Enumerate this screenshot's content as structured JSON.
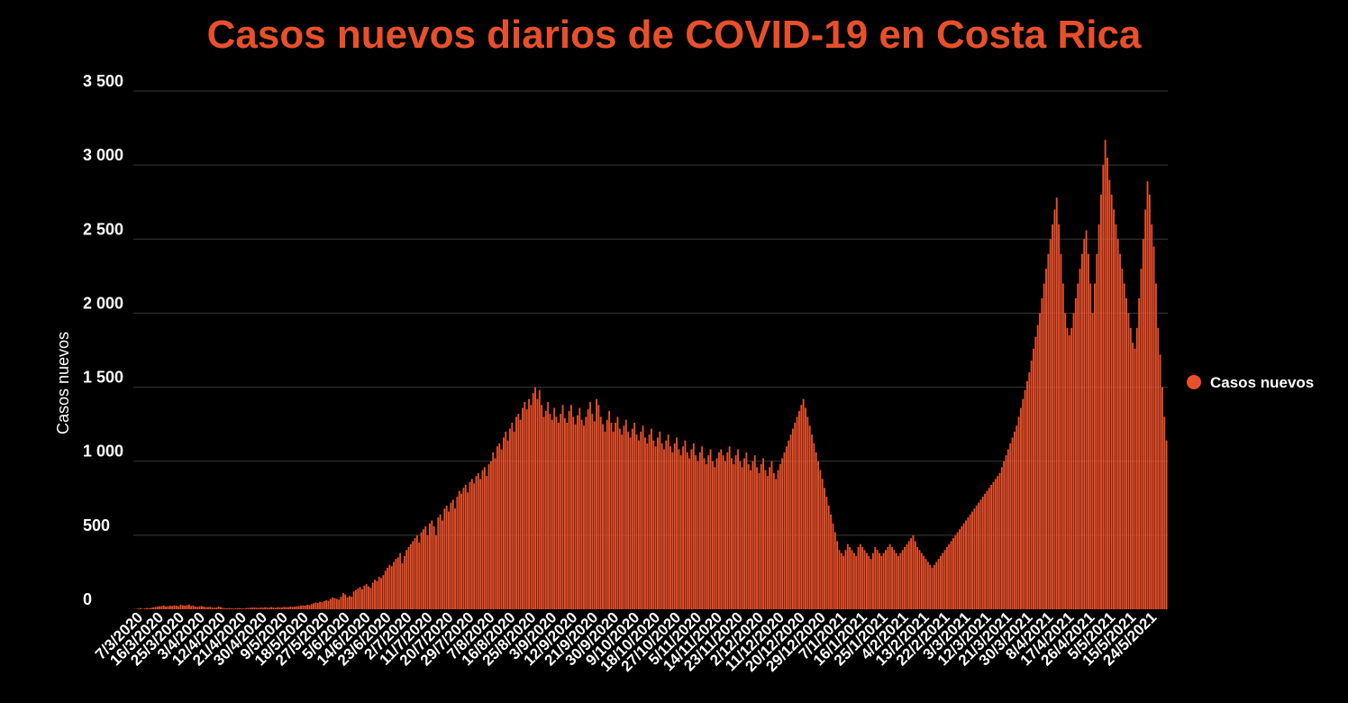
{
  "chart_data": {
    "type": "bar",
    "title": "Casos nuevos diarios de COVID-19 en Costa Rica",
    "ylabel": "Casos nuevos",
    "xlabel": "",
    "ylim": [
      0,
      3500
    ],
    "yticks": [
      0,
      500,
      1000,
      1500,
      2000,
      2500,
      3000,
      3500
    ],
    "ytick_labels": [
      "0",
      "500",
      "1 000",
      "1 500",
      "2 000",
      "2 500",
      "3 000",
      "3 500"
    ],
    "xtick_labels": [
      "7/3/2020",
      "16/3/2020",
      "25/3/2020",
      "3/4/2020",
      "12/4/2020",
      "21/4/2020",
      "30/4/2020",
      "9/5/2020",
      "18/5/2020",
      "27/5/2020",
      "5/6/2020",
      "14/6/2020",
      "23/6/2020",
      "2/7/2020",
      "11/7/2020",
      "20/7/2020",
      "29/7/2020",
      "7/8/2020",
      "16/8/2020",
      "25/8/2020",
      "3/9/2020",
      "12/9/2020",
      "21/9/2020",
      "30/9/2020",
      "9/10/2020",
      "18/10/2020",
      "27/10/2020",
      "5/11/2020",
      "14/11/2020",
      "23/11/2020",
      "2/12/2020",
      "11/12/2020",
      "20/12/2020",
      "29/12/2020",
      "7/1/2021",
      "16/1/2021",
      "25/1/2021",
      "4/2/2021",
      "13/2/2021",
      "22/2/2021",
      "3/3/2021",
      "12/3/2021",
      "21/3/2021",
      "30/3/2021",
      "8/4/2021",
      "17/4/2021",
      "26/4/2021",
      "5/5/2021",
      "15/5/2021",
      "24/5/2021"
    ],
    "grid": true,
    "legend_position": "right",
    "series": [
      {
        "name": "Casos nuevos",
        "color": "#e8502b",
        "values": [
          2,
          3,
          5,
          8,
          3,
          6,
          9,
          7,
          10,
          12,
          15,
          18,
          20,
          22,
          25,
          18,
          20,
          24,
          22,
          26,
          25,
          20,
          30,
          27,
          24,
          28,
          32,
          22,
          25,
          18,
          16,
          20,
          22,
          18,
          14,
          15,
          16,
          12,
          10,
          12,
          18,
          15,
          10,
          8,
          6,
          9,
          7,
          5,
          6,
          8,
          7,
          6,
          5,
          8,
          9,
          10,
          11,
          12,
          10,
          9,
          12,
          10,
          14,
          12,
          11,
          15,
          12,
          10,
          14,
          13,
          12,
          16,
          15,
          14,
          18,
          16,
          17,
          20,
          22,
          24,
          26,
          25,
          30,
          28,
          35,
          40,
          45,
          42,
          50,
          48,
          55,
          60,
          58,
          70,
          80,
          75,
          70,
          65,
          85,
          110,
          100,
          80,
          90,
          85,
          120,
          130,
          140,
          150,
          135,
          160,
          170,
          155,
          145,
          180,
          200,
          190,
          220,
          210,
          230,
          260,
          280,
          300,
          290,
          320,
          340,
          350,
          380,
          310,
          360,
          400,
          420,
          440,
          460,
          480,
          500,
          450,
          520,
          540,
          560,
          500,
          580,
          600,
          560,
          500,
          620,
          640,
          600,
          680,
          700,
          660,
          720,
          740,
          680,
          760,
          800,
          780,
          820,
          840,
          790,
          860,
          880,
          850,
          900,
          920,
          880,
          940,
          960,
          900,
          980,
          1000,
          1060,
          1020,
          1100,
          1120,
          1080,
          1160,
          1200,
          1140,
          1220,
          1260,
          1200,
          1300,
          1320,
          1280,
          1360,
          1400,
          1350,
          1420,
          1380,
          1460,
          1500,
          1420,
          1480,
          1380,
          1300,
          1340,
          1400,
          1320,
          1280,
          1360,
          1300,
          1260,
          1320,
          1380,
          1290,
          1260,
          1340,
          1380,
          1300,
          1250,
          1310,
          1360,
          1280,
          1240,
          1300,
          1350,
          1400,
          1320,
          1270,
          1420,
          1380,
          1300,
          1250,
          1200,
          1280,
          1340,
          1260,
          1200,
          1260,
          1300,
          1220,
          1180,
          1240,
          1280,
          1200,
          1160,
          1220,
          1260,
          1180,
          1140,
          1200,
          1240,
          1160,
          1120,
          1180,
          1220,
          1140,
          1100,
          1160,
          1200,
          1120,
          1080,
          1140,
          1180,
          1100,
          1060,
          1120,
          1160,
          1080,
          1040,
          1100,
          1140,
          1060,
          1020,
          1080,
          1120,
          1040,
          1000,
          1060,
          1100,
          1020,
          980,
          1040,
          1080,
          1000,
          960,
          1020,
          1060,
          1080,
          1040,
          1000,
          1060,
          1100,
          1020,
          980,
          1040,
          1080,
          1000,
          960,
          1020,
          1060,
          980,
          940,
          1000,
          1040,
          960,
          920,
          980,
          1020,
          940,
          900,
          960,
          1000,
          920,
          880,
          940,
          980,
          1020,
          1060,
          1100,
          1140,
          1180,
          1220,
          1260,
          1300,
          1340,
          1380,
          1420,
          1360,
          1300,
          1240,
          1180,
          1120,
          1060,
          1000,
          940,
          880,
          820,
          760,
          700,
          640,
          580,
          520,
          460,
          400,
          380,
          360,
          400,
          440,
          420,
          400,
          380,
          360,
          420,
          440,
          420,
          400,
          380,
          360,
          340,
          380,
          420,
          400,
          380,
          360,
          380,
          400,
          420,
          440,
          420,
          400,
          380,
          360,
          380,
          400,
          420,
          440,
          460,
          480,
          500,
          460,
          420,
          400,
          380,
          360,
          340,
          320,
          300,
          280,
          300,
          320,
          340,
          360,
          380,
          400,
          420,
          440,
          460,
          480,
          500,
          520,
          540,
          560,
          580,
          600,
          620,
          640,
          660,
          680,
          700,
          720,
          740,
          760,
          780,
          800,
          820,
          840,
          860,
          880,
          900,
          920,
          960,
          1000,
          1040,
          1080,
          1120,
          1160,
          1200,
          1240,
          1300,
          1360,
          1420,
          1480,
          1540,
          1600,
          1680,
          1760,
          1840,
          1920,
          2000,
          2100,
          2200,
          2300,
          2400,
          2500,
          2600,
          2700,
          2780,
          2600,
          2400,
          2200,
          2000,
          1900,
          1850,
          1900,
          2000,
          2100,
          2200,
          2300,
          2400,
          2500,
          2560,
          2400,
          2200,
          2000,
          2200,
          2400,
          2600,
          2800,
          3000,
          3170,
          3050,
          2900,
          2800,
          2700,
          2600,
          2500,
          2400,
          2300,
          2200,
          2100,
          2000,
          1900,
          1800,
          1760,
          1900,
          2100,
          2300,
          2500,
          2700,
          2890,
          2800,
          2600,
          2450,
          2200,
          1900,
          1720,
          1500,
          1300,
          1140
        ]
      }
    ]
  }
}
